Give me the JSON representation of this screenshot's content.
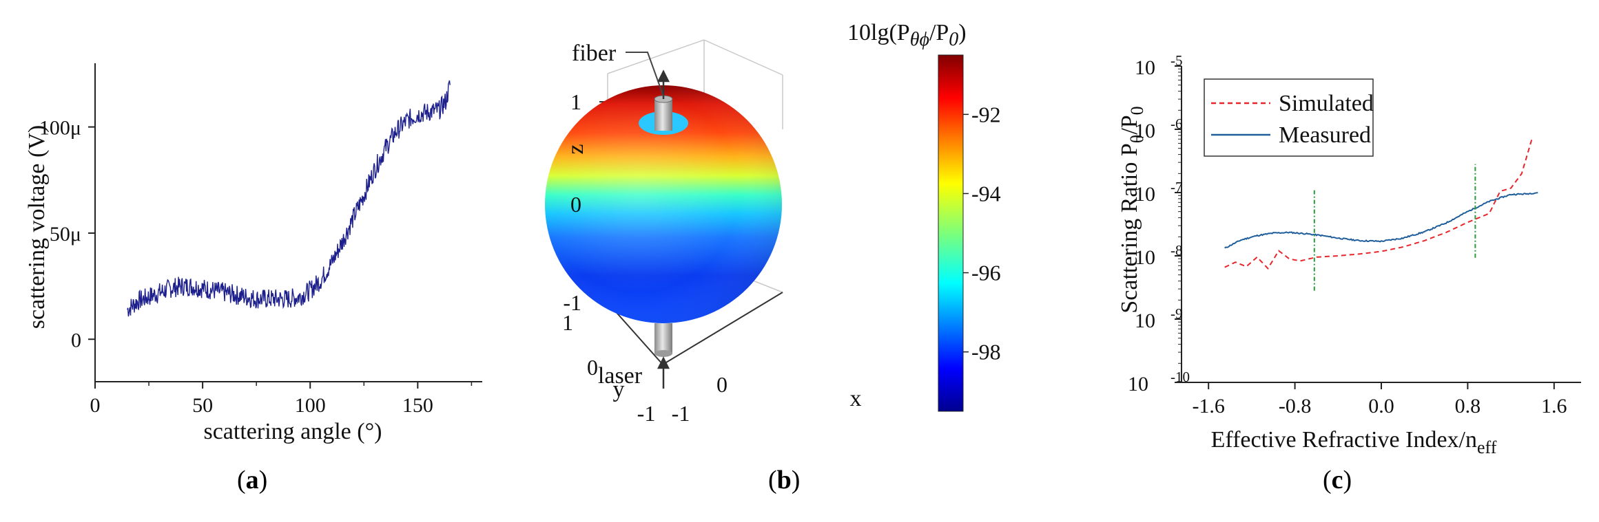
{
  "panels": [
    {
      "id": "a",
      "label_text": "a"
    },
    {
      "id": "b",
      "label_text": "b"
    },
    {
      "id": "c",
      "label_text": "c"
    }
  ],
  "chart_data": [
    {
      "type": "line",
      "xlabel": "scattering angle (°)",
      "ylabel": "scattering voltage (V)",
      "xlim": [
        0,
        180
      ],
      "ylim": [
        -2e-05,
        0.00013
      ],
      "x_ticks": [
        {
          "v": 0,
          "label": "0"
        },
        {
          "v": 50,
          "label": "50"
        },
        {
          "v": 100,
          "label": "100"
        },
        {
          "v": 150,
          "label": "150"
        }
      ],
      "y_ticks": [
        {
          "v": 0,
          "label": "0"
        },
        {
          "v": 5e-05,
          "label": "50μ"
        },
        {
          "v": 0.0001,
          "label": "100μ"
        }
      ],
      "series": [
        {
          "x": [
            15,
            20,
            25,
            30,
            35,
            40,
            45,
            50,
            55,
            60,
            65,
            70,
            75,
            80,
            85,
            90,
            95,
            100,
            105,
            110,
            115,
            120,
            125,
            130,
            135,
            140,
            145,
            150,
            155,
            160,
            163,
            165
          ],
          "y": [
            1.4e-05,
            1.8e-05,
            2e-05,
            2.2e-05,
            2.4e-05,
            2.5e-05,
            2.5e-05,
            2.4e-05,
            2.3e-05,
            2.2e-05,
            2.1e-05,
            2e-05,
            1.9e-05,
            1.9e-05,
            1.9e-05,
            1.9e-05,
            2e-05,
            2.3e-05,
            2.8e-05,
            3.6e-05,
            4.6e-05,
            5.7e-05,
            6.8e-05,
            8e-05,
            9e-05,
            9.8e-05,
            0.000103,
            0.000106,
            0.000107,
            0.000108,
            0.000112,
            0.00012
          ],
          "color": "#1c1f8c"
        }
      ]
    },
    {
      "type": "heatmap",
      "colorbar_title": "10lg(P",
      "colorbar_sub": "θϕ",
      "colorbar_title2": "/P",
      "colorbar_sub2": "0",
      "colorbar_title3": ")",
      "colorbar_range": [
        -99.5,
        -90.5
      ],
      "colorbar_ticks": [
        {
          "v": -92,
          "label": "-92"
        },
        {
          "v": -94,
          "label": "-94"
        },
        {
          "v": -96,
          "label": "-96"
        },
        {
          "v": -98,
          "label": "-98"
        }
      ],
      "z_ticks": [
        {
          "v": 1,
          "label": "1"
        },
        {
          "v": 0,
          "label": "0"
        },
        {
          "v": -1,
          "label": "-1"
        }
      ],
      "y_ticks": [
        {
          "v": 1,
          "label": "1"
        },
        {
          "v": 0,
          "label": "0"
        },
        {
          "v": -1,
          "label": "-1"
        }
      ],
      "x_ticks": [
        {
          "v": -1,
          "label": "-1"
        },
        {
          "v": 0,
          "label": "0"
        }
      ],
      "zlabel": "z",
      "ylabel": "y",
      "xlabel": "x",
      "annotations": {
        "fiber": "fiber",
        "laser": "laser"
      }
    },
    {
      "type": "line",
      "xlabel": "Effective Refractive Index/n",
      "xlabel_sub": "eff",
      "ylabel": "Scattering Ratio P",
      "ylabel_sub": "θ",
      "ylabel2": "/P",
      "ylabel_sub2": "0",
      "log_y": true,
      "xlim": [
        -1.85,
        1.85
      ],
      "ylim_exp": [
        -10,
        -5
      ],
      "x_ticks": [
        {
          "v": -1.6,
          "label": "-1.6"
        },
        {
          "v": -0.8,
          "label": "-0.8"
        },
        {
          "v": 0,
          "label": "0.0"
        },
        {
          "v": 0.8,
          "label": "0.8"
        },
        {
          "v": 1.6,
          "label": "1.6"
        }
      ],
      "y_ticks": [
        {
          "e": -5,
          "label": "-5"
        },
        {
          "e": -6,
          "label": "-6"
        },
        {
          "e": -7,
          "label": "-7"
        },
        {
          "e": -8,
          "label": "-8"
        },
        {
          "e": -9,
          "label": "-9"
        },
        {
          "e": -10,
          "label": "-10"
        }
      ],
      "series": [
        {
          "name": "Simulated",
          "color": "#e8252a",
          "dash": "7,5",
          "x": [
            -1.45,
            -1.35,
            -1.25,
            -1.15,
            -1.05,
            -0.95,
            -0.85,
            -0.75,
            -0.6,
            -0.4,
            -0.2,
            0.0,
            0.2,
            0.4,
            0.6,
            0.8,
            0.9,
            1.0,
            1.1,
            1.2,
            1.3,
            1.4
          ],
          "y_exp": [
            -8.18,
            -8.1,
            -8.17,
            -8.02,
            -8.2,
            -7.92,
            -8.05,
            -8.08,
            -8.02,
            -8.0,
            -7.97,
            -7.93,
            -7.86,
            -7.76,
            -7.63,
            -7.47,
            -7.4,
            -7.33,
            -6.98,
            -6.93,
            -6.7,
            -6.12
          ]
        },
        {
          "name": "Measured",
          "color": "#1f5e9b",
          "dash": "",
          "x": [
            -1.45,
            -1.3,
            -1.15,
            -1.0,
            -0.85,
            -0.7,
            -0.55,
            -0.4,
            -0.2,
            0.0,
            0.2,
            0.4,
            0.6,
            0.8,
            1.0,
            1.2,
            1.35,
            1.45
          ],
          "y_exp": [
            -7.88,
            -7.75,
            -7.68,
            -7.64,
            -7.63,
            -7.65,
            -7.68,
            -7.72,
            -7.76,
            -7.77,
            -7.72,
            -7.62,
            -7.48,
            -7.3,
            -7.14,
            -7.03,
            -7.02,
            -7.0
          ]
        }
      ],
      "vlines": [
        {
          "x": -0.62,
          "from_exp": -8.55,
          "to_exp": -6.95,
          "color": "#2a9a3a"
        },
        {
          "x": 0.87,
          "from_exp": -8.03,
          "to_exp": -6.55,
          "color": "#2a9a3a"
        }
      ]
    }
  ]
}
